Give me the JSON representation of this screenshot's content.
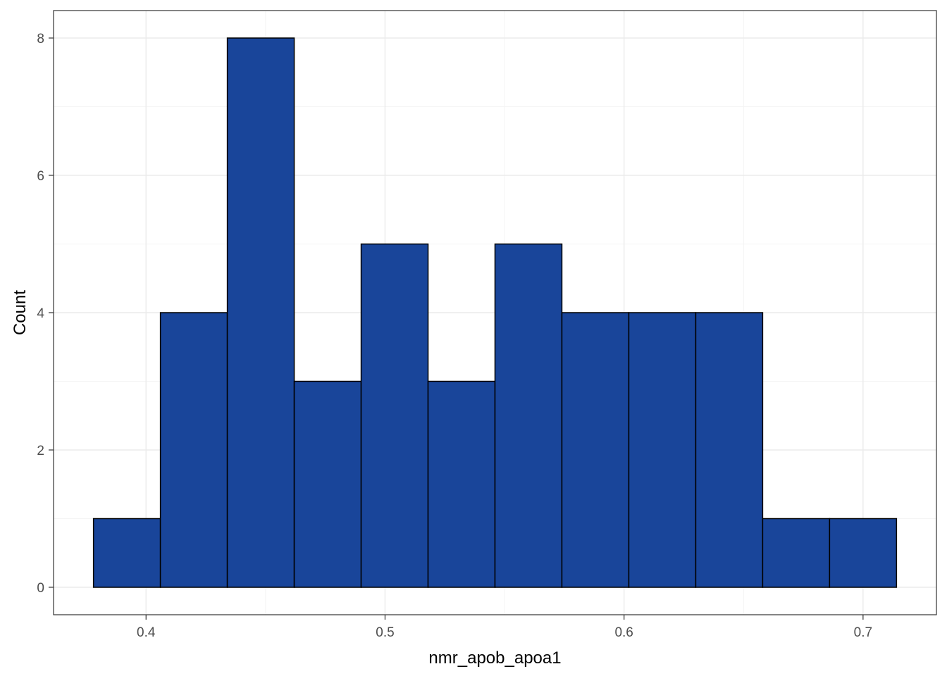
{
  "chart_data": {
    "type": "bar",
    "subtype": "histogram",
    "title": "",
    "xlabel": "nmr_apob_apoa1",
    "ylabel": "Count",
    "bin_width": 0.028,
    "bin_start": 0.378,
    "bins": [
      {
        "x_start": 0.378,
        "x_end": 0.406,
        "count": 1
      },
      {
        "x_start": 0.406,
        "x_end": 0.434,
        "count": 4
      },
      {
        "x_start": 0.434,
        "x_end": 0.462,
        "count": 8
      },
      {
        "x_start": 0.462,
        "x_end": 0.49,
        "count": 3
      },
      {
        "x_start": 0.49,
        "x_end": 0.518,
        "count": 5
      },
      {
        "x_start": 0.518,
        "x_end": 0.546,
        "count": 3
      },
      {
        "x_start": 0.546,
        "x_end": 0.574,
        "count": 5
      },
      {
        "x_start": 0.574,
        "x_end": 0.602,
        "count": 4
      },
      {
        "x_start": 0.602,
        "x_end": 0.63,
        "count": 4
      },
      {
        "x_start": 0.63,
        "x_end": 0.658,
        "count": 4
      },
      {
        "x_start": 0.658,
        "x_end": 0.686,
        "count": 1
      },
      {
        "x_start": 0.686,
        "x_end": 0.714,
        "count": 1
      }
    ],
    "x_ticks": [
      {
        "value": 0.4,
        "label": "0.4"
      },
      {
        "value": 0.5,
        "label": "0.5"
      },
      {
        "value": 0.6,
        "label": "0.6"
      },
      {
        "value": 0.7,
        "label": "0.7"
      }
    ],
    "y_ticks": [
      {
        "value": 0,
        "label": "0"
      },
      {
        "value": 2,
        "label": "2"
      },
      {
        "value": 4,
        "label": "4"
      },
      {
        "value": 6,
        "label": "6"
      },
      {
        "value": 8,
        "label": "8"
      }
    ],
    "xlim": [
      0.3613,
      0.7307
    ],
    "ylim": [
      -0.4,
      8.4
    ],
    "grid": true,
    "legend": "none",
    "colors": {
      "bar_fill": "#19459A",
      "bar_stroke": "#000000",
      "grid_major": "#EBEBEB",
      "grid_minor": "#F4F4F4",
      "panel_border": "#333333"
    }
  }
}
